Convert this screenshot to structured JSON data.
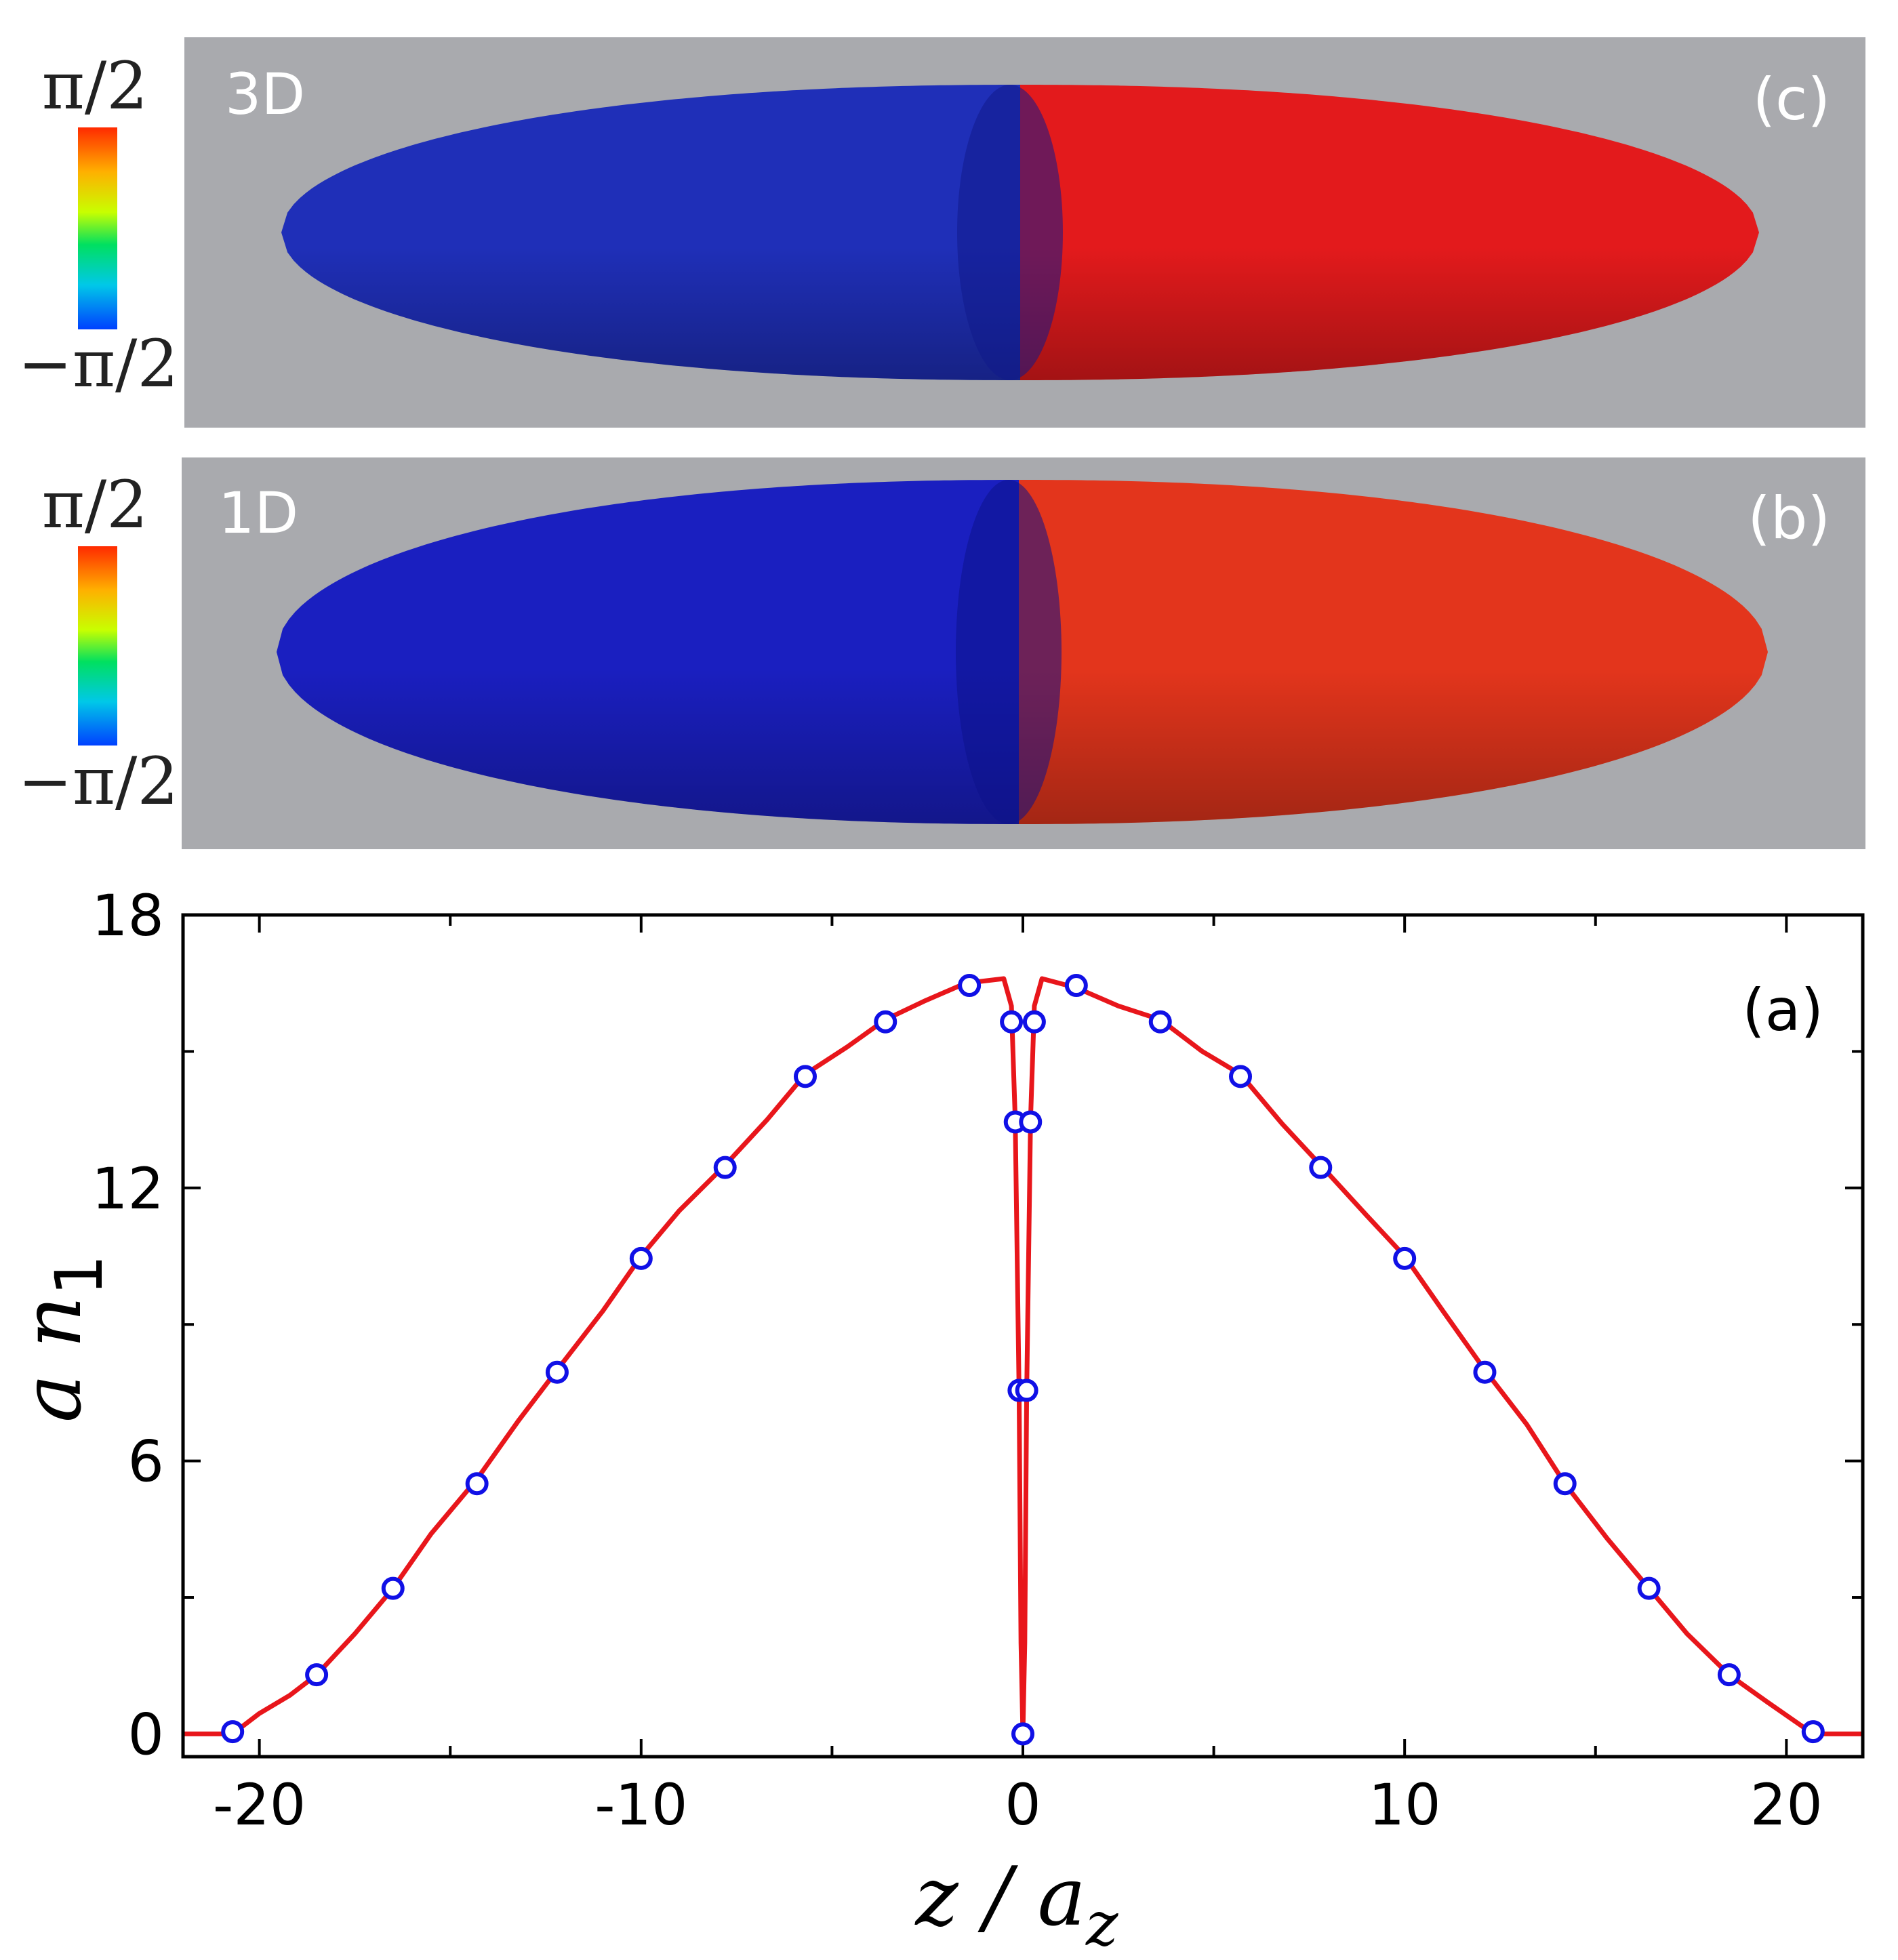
{
  "panels": {
    "c": {
      "dimension": "3D",
      "tag": "(c)",
      "colorbar": {
        "top": "π/2",
        "bottom": "−π/2"
      },
      "colors": {
        "left": "#1f2fb8",
        "right": "#e31a1c",
        "background": "#a9aaae"
      }
    },
    "b": {
      "dimension": "1D",
      "tag": "(b)",
      "colorbar": {
        "top": "π/2",
        "bottom": "−π/2"
      },
      "colors": {
        "left": "#1a1fc0",
        "right": "#e3351c",
        "background": "#a9aaae"
      }
    }
  },
  "chart_data": {
    "type": "line",
    "panel_tag": "(a)",
    "xlabel": {
      "main": "z / a",
      "sub": "z"
    },
    "ylabel": {
      "main": "a n",
      "sub": "1"
    },
    "xlim": [
      -22,
      22
    ],
    "ylim": [
      -0.5,
      18
    ],
    "xticks": [
      -20,
      -10,
      0,
      10,
      20
    ],
    "yticks": [
      0,
      6,
      12,
      18
    ],
    "xticks_minor": [
      -15,
      -5,
      5,
      15
    ],
    "yticks_minor": [
      3,
      9,
      15
    ],
    "line_color": "#e8161b",
    "marker_color": "#1010e6",
    "series": [
      {
        "kind": "line",
        "x": [
          -22,
          -21,
          -20.7,
          -20,
          -19.2,
          -18.5,
          -17.5,
          -16.5,
          -15.5,
          -14.3,
          -13.2,
          -12.2,
          -11,
          -10,
          -9,
          -7.8,
          -6.7,
          -5.7,
          -4.6,
          -3.6,
          -2.6,
          -1.5,
          -0.5,
          -0.3,
          -0.2,
          -0.1,
          -0.05,
          0,
          0.05,
          0.1,
          0.2,
          0.3,
          0.5,
          1.4,
          2.5,
          3.6,
          4.7,
          5.7,
          6.8,
          7.8,
          9,
          10,
          11,
          12.1,
          13.2,
          14.2,
          15.3,
          16.4,
          17.4,
          18.5,
          19.5,
          20.7,
          21,
          22
        ],
        "y": [
          0,
          0,
          0,
          0.45,
          0.85,
          1.3,
          2.2,
          3.2,
          4.4,
          5.6,
          6.9,
          8.0,
          9.3,
          10.5,
          11.5,
          12.5,
          13.5,
          14.5,
          15.1,
          15.7,
          16.1,
          16.5,
          16.6,
          16.0,
          13.5,
          7.5,
          2.0,
          0,
          2.0,
          7.5,
          13.5,
          16.0,
          16.6,
          16.4,
          16.0,
          15.7,
          15.0,
          14.5,
          13.4,
          12.5,
          11.4,
          10.5,
          9.3,
          8.0,
          6.8,
          5.5,
          4.3,
          3.2,
          2.2,
          1.3,
          0.7,
          0,
          0,
          0
        ]
      },
      {
        "kind": "markers",
        "x": [
          -20.7,
          -18.5,
          -16.5,
          -14.3,
          -12.2,
          -10,
          -7.8,
          -5.7,
          -3.6,
          -1.4,
          -0.3,
          -0.2,
          -0.1,
          0,
          0.1,
          0.2,
          0.3,
          1.4,
          3.6,
          5.7,
          7.8,
          10,
          12.1,
          14.2,
          16.4,
          18.5,
          20.7
        ],
        "y": [
          0.05,
          1.3,
          3.2,
          5.5,
          7.95,
          10.45,
          12.45,
          14.45,
          15.65,
          16.45,
          15.65,
          13.45,
          7.55,
          0,
          7.55,
          13.45,
          15.65,
          16.45,
          15.65,
          14.45,
          12.45,
          10.45,
          7.95,
          5.5,
          3.2,
          1.3,
          0.05
        ]
      }
    ]
  }
}
